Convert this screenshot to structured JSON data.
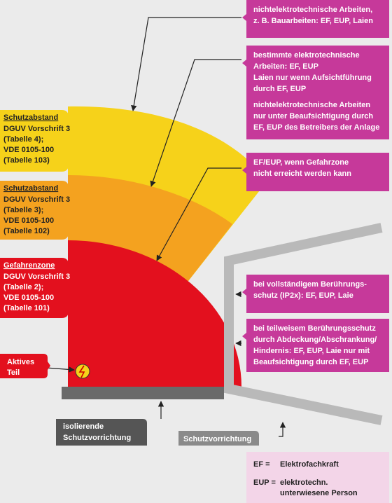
{
  "left_labels": [
    {
      "title": "Schutzabstand",
      "lines": [
        "DGUV Vorschrift 3",
        "(Tabelle 4);",
        "VDE 0105-100",
        "(Tabelle 103)"
      ]
    },
    {
      "title": "Schutzabstand",
      "lines": [
        "DGUV Vorschrift 3",
        "(Tabelle 3);",
        "VDE 0105-100",
        "(Tabelle 102)"
      ]
    },
    {
      "title": "Gefahrenzone",
      "lines": [
        "DGUV Vorschrift 3",
        "(Tabelle 2);",
        "VDE 0105-100",
        "(Tabelle 101)"
      ]
    }
  ],
  "active_part": {
    "lines": [
      "Aktives",
      "Teil"
    ]
  },
  "right_boxes": [
    {
      "lines": [
        "nichtelektrotechnische Arbeiten,",
        "z. B. Bauarbeiten: EF, EUP, Laien"
      ]
    },
    {
      "lines": [
        "bestimmte elektrotechnische",
        "Arbeiten: EF, EUP",
        "Laien nur wenn Aufsichtführung",
        "durch EF, EUP"
      ],
      "lines2": [
        "nichtelektrotechnische Arbeiten",
        "nur unter Beaufsichtigung durch",
        "EF, EUP des Betreibers der Anlage"
      ]
    },
    {
      "lines": [
        "EF/EUP, wenn Gefahrzone",
        "nicht erreicht werden kann"
      ]
    },
    {
      "lines": [
        "bei vollständigem Berührungs-",
        "schutz (IP2x): EF, EUP, Laie"
      ]
    },
    {
      "lines": [
        "bei teilweisem Berührungsschutz",
        "durch Abdeckung/Abschrankung/",
        "Hindernis: EF, EUP, Laie nur mit",
        "Beaufsichtigung durch EF, EUP"
      ]
    }
  ],
  "bottom_labels": {
    "insulating": [
      "isolierende",
      "Schutzvorrichtung"
    ],
    "protective": "Schutzvorrichtung"
  },
  "legend": [
    {
      "abbr": "EF =",
      "lines": [
        "Elektrofachkraft"
      ]
    },
    {
      "abbr": "EUP =",
      "lines": [
        "elektrotechn.",
        "unterwiesene Person"
      ]
    }
  ]
}
